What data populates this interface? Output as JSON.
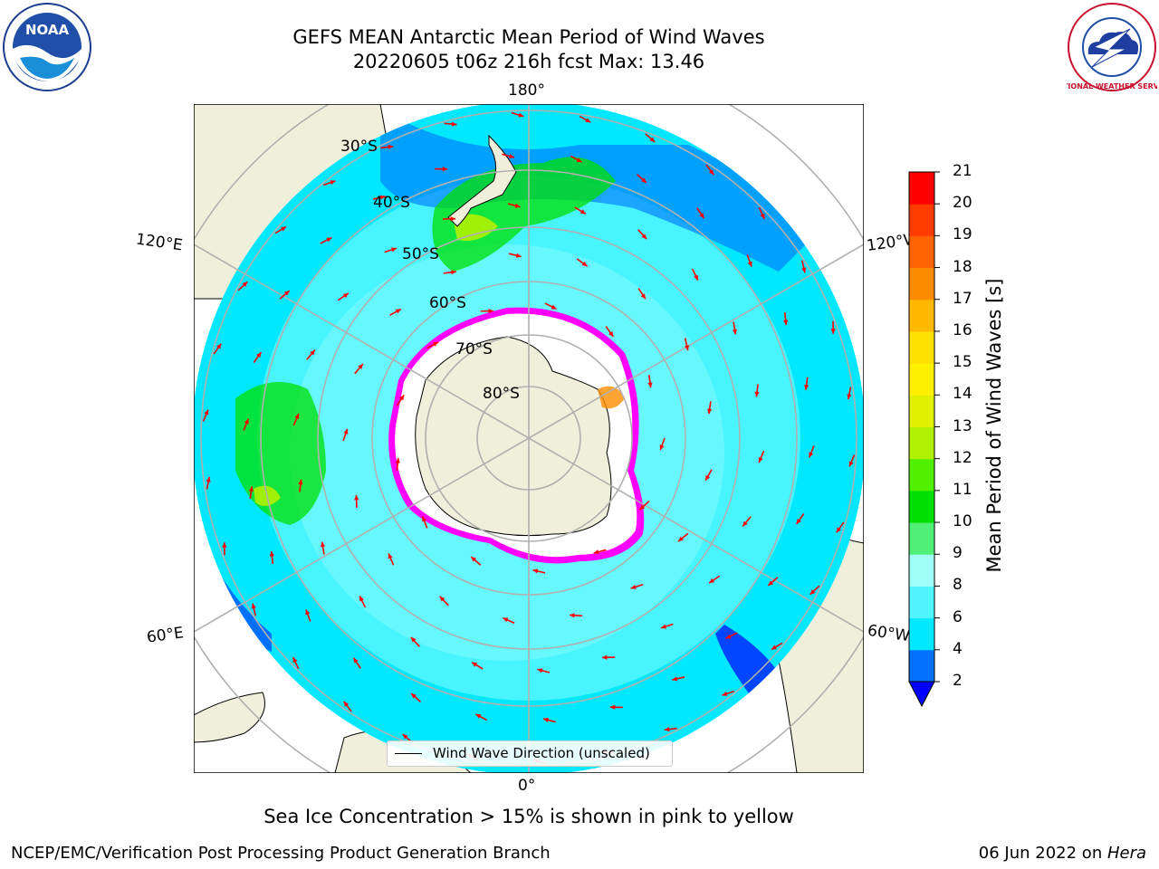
{
  "title": {
    "line1": "GEFS MEAN Antarctic Mean Period of Wind Waves",
    "line2": "20220605 t06z 216h fcst   Max: 13.46"
  },
  "map": {
    "lon_labels": {
      "top": "180°",
      "bottom": "0°",
      "upper_left": "120°E",
      "lower_left": "60°E",
      "upper_right": "120°W",
      "lower_right": "60°W"
    },
    "lat_labels": [
      "30°S",
      "40°S",
      "50°S",
      "60°S",
      "70°S",
      "80°S"
    ],
    "legend": "Wind Wave Direction (unscaled)"
  },
  "colorbar": {
    "title": "Mean Period of Wind Waves [s]",
    "ticks": [
      "2",
      "4",
      "6",
      "8",
      "9",
      "10",
      "11",
      "12",
      "13",
      "14",
      "15",
      "16",
      "17",
      "18",
      "19",
      "20",
      "21"
    ],
    "colors": [
      "#0070ff",
      "#00e8ff",
      "#50f5ff",
      "#a0fff8",
      "#50f078",
      "#00e000",
      "#50f000",
      "#b0f000",
      "#e0f000",
      "#fff000",
      "#ffe000",
      "#ffb800",
      "#ff8c00",
      "#ff6400",
      "#ff3c00",
      "#ff0000"
    ],
    "under_color": "#0000ff"
  },
  "logos": {
    "noaa": "NOAA",
    "nws": "NATIONAL WEATHER SERVICE"
  },
  "note": "Sea Ice Concentration > 15% is shown in pink to yellow",
  "footer": {
    "left": "NCEP/EMC/Verification Post Processing Product Generation Branch",
    "right_date": "06 Jun 2022 on ",
    "right_machine": "Hera"
  }
}
